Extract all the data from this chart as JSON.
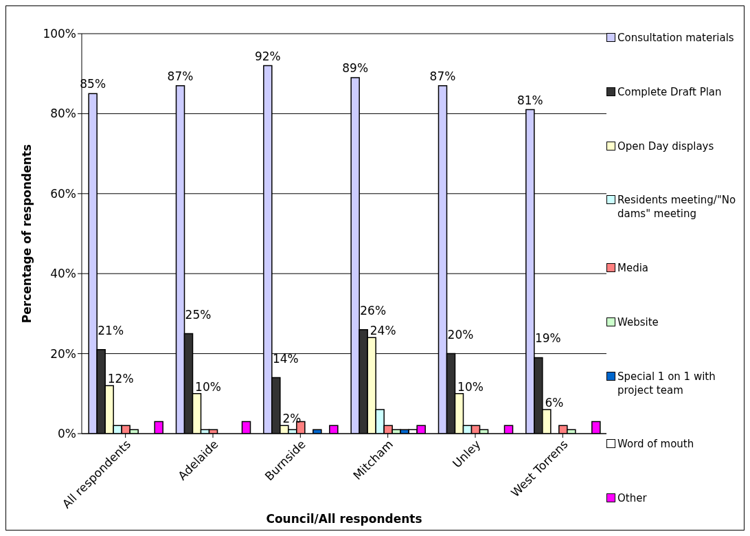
{
  "chart_data": {
    "type": "bar",
    "xlabel": "Council/All respondents",
    "ylabel": "Percentage of respondents",
    "categories": [
      "All respondents",
      "Adelaide",
      "Burnside",
      "Mitcham",
      "Unley",
      "West Torrens"
    ],
    "series": [
      {
        "name": "Consultation materials",
        "color": "#ccccff",
        "values": [
          85,
          87,
          92,
          89,
          87,
          81
        ],
        "value_labels": [
          "85%",
          "87%",
          "92%",
          "89%",
          "87%",
          "81%"
        ]
      },
      {
        "name": "Complete Draft Plan",
        "color": "#333333",
        "values": [
          21,
          25,
          14,
          26,
          20,
          19
        ],
        "value_labels": [
          "21%",
          "25%",
          "14%",
          "26%",
          "20%",
          "19%"
        ]
      },
      {
        "name": "Open Day displays",
        "color": "#ffffcc",
        "values": [
          12,
          10,
          2,
          24,
          10,
          6
        ],
        "value_labels": [
          "12%",
          "10%",
          "2%",
          "24%",
          "10%",
          "6%"
        ]
      },
      {
        "name": "Residents meeting/\"No dams\" meeting",
        "color": "#ccffff",
        "values": [
          2,
          1,
          1,
          6,
          2,
          0
        ]
      },
      {
        "name": "Media",
        "color": "#ff8080",
        "values": [
          2,
          1,
          3,
          2,
          2,
          2
        ]
      },
      {
        "name": "Website",
        "color": "#ccffcc",
        "values": [
          1,
          0,
          0,
          1,
          1,
          1
        ]
      },
      {
        "name": "Special 1 on 1 with project team",
        "color": "#0066cc",
        "values": [
          0,
          0,
          1,
          1,
          0,
          0
        ]
      },
      {
        "name": "Word of mouth",
        "color": "#ffffff",
        "values": [
          0,
          0,
          0,
          1,
          0,
          0
        ]
      },
      {
        "name": "Other",
        "color": "#ff00ff",
        "values": [
          3,
          3,
          2,
          2,
          2,
          3
        ]
      }
    ],
    "ylim": [
      0,
      100
    ],
    "yticks": [
      {
        "value": 0,
        "label": "0%"
      },
      {
        "value": 20,
        "label": "20%"
      },
      {
        "value": 40,
        "label": "40%"
      },
      {
        "value": 60,
        "label": "60%"
      },
      {
        "value": 80,
        "label": "80%"
      },
      {
        "value": 100,
        "label": "100%"
      }
    ],
    "grid": "y",
    "legend": "right"
  }
}
